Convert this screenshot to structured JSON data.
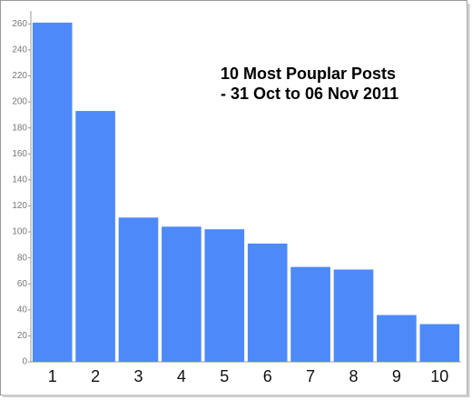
{
  "chart_data": {
    "type": "bar",
    "title": "10 Most Pouplar Posts",
    "subtitle": "- 31 Oct to 06 Nov 2011",
    "categories": [
      "1",
      "2",
      "3",
      "4",
      "5",
      "6",
      "7",
      "8",
      "9",
      "10"
    ],
    "values": [
      261,
      193,
      111,
      104,
      102,
      91,
      73,
      71,
      36,
      29
    ],
    "color": "#4d89f9",
    "ylim": [
      0,
      270
    ],
    "yticks": [
      0,
      20,
      40,
      60,
      80,
      100,
      120,
      140,
      160,
      180,
      200,
      220,
      240,
      260
    ],
    "grid": false
  }
}
